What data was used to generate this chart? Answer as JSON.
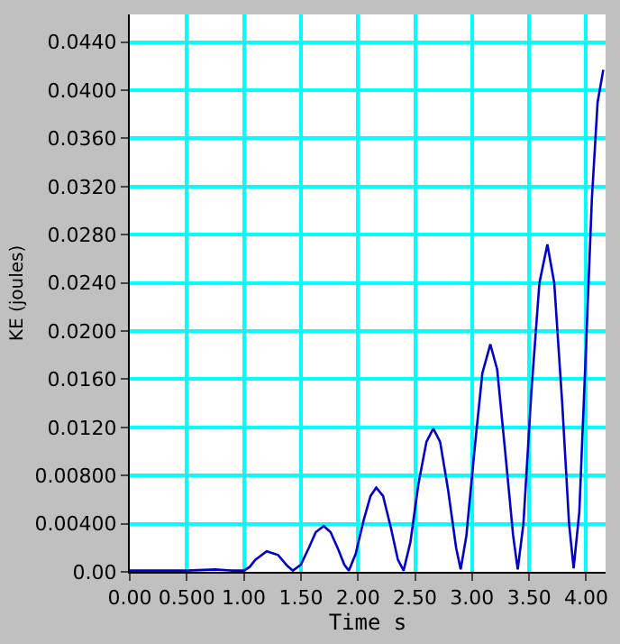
{
  "chart_data": {
    "type": "line",
    "xlabel": "Time s",
    "ylabel": "KE (joules)",
    "xlim": [
      0,
      4.17
    ],
    "ylim": [
      0,
      0.0463
    ],
    "xticks": [
      {
        "value": 0,
        "label": "0.00"
      },
      {
        "value": 0.5,
        "label": "0.500"
      },
      {
        "value": 1,
        "label": "1.00"
      },
      {
        "value": 1.5,
        "label": "1.50"
      },
      {
        "value": 2,
        "label": "2.00"
      },
      {
        "value": 2.5,
        "label": "2.50"
      },
      {
        "value": 3,
        "label": "3.00"
      },
      {
        "value": 3.5,
        "label": "3.50"
      },
      {
        "value": 4,
        "label": "4.00"
      }
    ],
    "yticks": [
      {
        "value": 0,
        "label": "0.00"
      },
      {
        "value": 0.004,
        "label": "0.00400"
      },
      {
        "value": 0.008,
        "label": "0.00800"
      },
      {
        "value": 0.012,
        "label": "0.0120"
      },
      {
        "value": 0.016,
        "label": "0.0160"
      },
      {
        "value": 0.02,
        "label": "0.0200"
      },
      {
        "value": 0.024,
        "label": "0.0240"
      },
      {
        "value": 0.028,
        "label": "0.0280"
      },
      {
        "value": 0.032,
        "label": "0.0320"
      },
      {
        "value": 0.036,
        "label": "0.0360"
      },
      {
        "value": 0.04,
        "label": "0.0400"
      },
      {
        "value": 0.044,
        "label": "0.0440"
      }
    ],
    "grid": true,
    "marker": "none",
    "line_style": "solid",
    "series": [
      {
        "color": "#0000cc",
        "x": [
          0,
          0.25,
          0.5,
          0.75,
          0.9,
          1.0,
          1.05,
          1.1,
          1.2,
          1.3,
          1.38,
          1.43,
          1.5,
          1.57,
          1.63,
          1.7,
          1.76,
          1.83,
          1.88,
          1.92,
          1.98,
          2.05,
          2.11,
          2.16,
          2.22,
          2.29,
          2.35,
          2.4,
          2.46,
          2.53,
          2.6,
          2.66,
          2.72,
          2.79,
          2.86,
          2.9,
          2.95,
          3.02,
          3.09,
          3.16,
          3.22,
          3.29,
          3.36,
          3.4,
          3.45,
          3.52,
          3.59,
          3.66,
          3.72,
          3.79,
          3.85,
          3.89,
          3.94,
          4.0,
          4.05,
          4.1,
          4.15
        ],
        "values": [
          0.0001,
          0.0001,
          0.0001,
          0.0002,
          0.0001,
          0.0001,
          0.0004,
          0.001,
          0.0017,
          0.0014,
          0.0005,
          0.0001,
          0.0006,
          0.002,
          0.0033,
          0.0038,
          0.0033,
          0.0018,
          0.0006,
          0.0001,
          0.0015,
          0.0043,
          0.0063,
          0.007,
          0.0063,
          0.0036,
          0.001,
          0.0001,
          0.0025,
          0.0073,
          0.0108,
          0.0119,
          0.0108,
          0.0068,
          0.002,
          0.0002,
          0.003,
          0.01,
          0.0165,
          0.0189,
          0.0168,
          0.01,
          0.003,
          0.0002,
          0.004,
          0.015,
          0.024,
          0.0272,
          0.024,
          0.014,
          0.004,
          0.0003,
          0.005,
          0.019,
          0.031,
          0.039,
          0.0417
        ]
      }
    ]
  }
}
